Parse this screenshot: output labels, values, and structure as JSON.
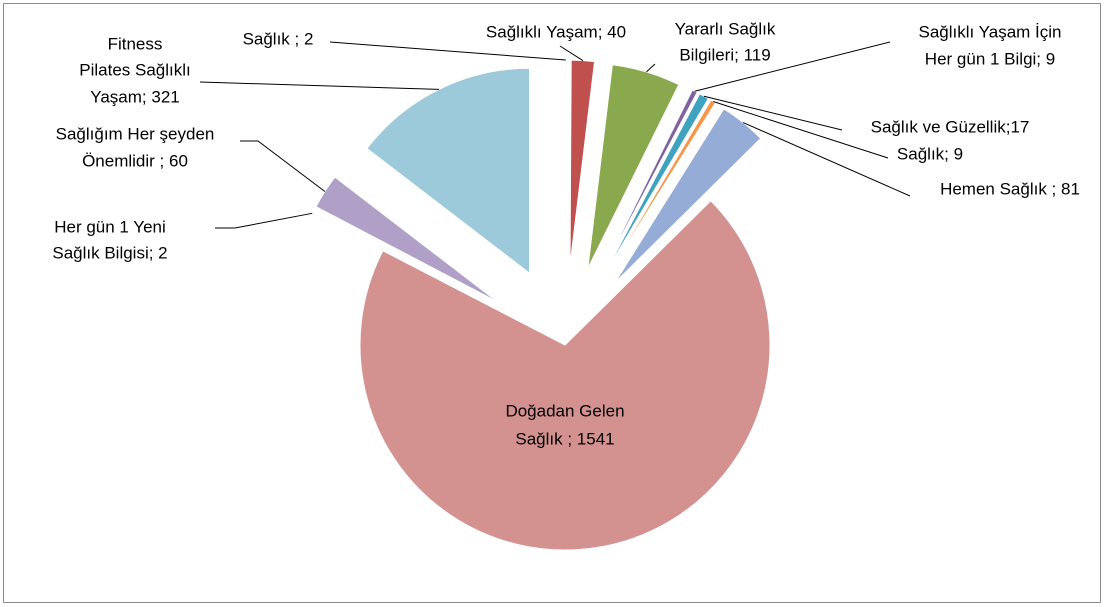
{
  "chart_data": {
    "type": "pie",
    "categories_lines": null,
    "values": [
      2,
      40,
      119,
      9,
      17,
      9,
      81,
      1541,
      2,
      60,
      321
    ],
    "value_labels": [
      [
        "Sağlık ; 2"
      ],
      [
        "Sağlıklı Yaşam; 40"
      ],
      [
        "Yararlı Sağlık",
        "Bilgileri; 119"
      ],
      [
        "Sağlıklı Yaşam İçin",
        "Her gün 1 Bilgi; 9"
      ],
      [
        "Sağlık ve Güzellik;17"
      ],
      [
        "Sağlık; 9"
      ],
      [
        "Hemen Sağlık ; 81"
      ],
      [
        "Doğadan Gelen",
        "Sağlık ; 1541"
      ],
      [
        "Her gün 1 Yeni",
        "Sağlık Bilgisi; 2"
      ],
      [
        "Sağlığım Her şeyden",
        "Önemlidir  ; 60"
      ],
      [
        "Fitness",
        "Pilates Sağlıklı",
        "Yaşam; 321"
      ]
    ],
    "colors": [
      "#d9d9d9",
      "#c0504d",
      "#8aa84e",
      "#7f63a1",
      "#3fa3c0",
      "#f79646",
      "#95add6",
      "#d3918f",
      "#c3d69b",
      "#b0a0c8",
      "#9ccadb"
    ],
    "exploded": true
  }
}
